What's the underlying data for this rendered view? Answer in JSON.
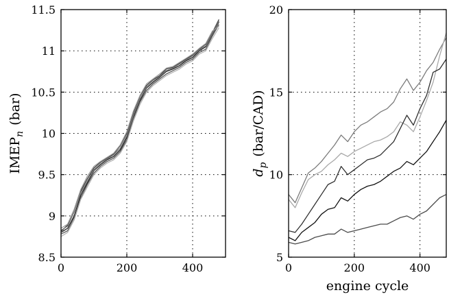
{
  "chart_data": [
    {
      "type": "line",
      "title": "",
      "xlabel": "",
      "ylabel": "IMEP",
      "ylabel_subscript": "n",
      "ylabel_unit": "(bar)",
      "xlim": [
        0,
        500
      ],
      "ylim": [
        8.5,
        11.5
      ],
      "xticks": [
        "0",
        "200",
        "400"
      ],
      "yticks": [
        "8.5",
        "9",
        "9.5",
        "10",
        "10.5",
        "11",
        "11.5"
      ],
      "grid": true,
      "x": [
        0,
        20,
        40,
        60,
        80,
        100,
        120,
        140,
        160,
        180,
        200,
        220,
        240,
        260,
        280,
        300,
        320,
        340,
        360,
        380,
        400,
        420,
        440,
        460,
        480
      ],
      "series": [
        {
          "color": "#1e1e1e",
          "values": [
            8.8,
            8.85,
            9.0,
            9.25,
            9.4,
            9.55,
            9.62,
            9.68,
            9.72,
            9.8,
            9.95,
            10.2,
            10.4,
            10.55,
            10.62,
            10.68,
            10.75,
            10.78,
            10.82,
            10.88,
            10.92,
            11.0,
            11.05,
            11.2,
            11.35
          ]
        },
        {
          "color": "#3c3c3c",
          "values": [
            8.82,
            8.88,
            9.05,
            9.3,
            9.45,
            9.58,
            9.65,
            9.7,
            9.75,
            9.85,
            10.0,
            10.25,
            10.45,
            10.58,
            10.65,
            10.7,
            10.78,
            10.8,
            10.85,
            10.9,
            10.95,
            11.02,
            11.08,
            11.22,
            11.38
          ]
        },
        {
          "color": "#5a5a5a",
          "values": [
            8.78,
            8.82,
            8.98,
            9.22,
            9.38,
            9.52,
            9.6,
            9.66,
            9.7,
            9.78,
            9.92,
            10.18,
            10.38,
            10.52,
            10.6,
            10.66,
            10.72,
            10.76,
            10.8,
            10.86,
            10.9,
            10.98,
            11.02,
            11.18,
            11.32
          ]
        },
        {
          "color": "#787878",
          "values": [
            8.8,
            8.9,
            9.05,
            9.28,
            9.42,
            9.56,
            9.63,
            9.69,
            9.74,
            9.82,
            9.97,
            10.22,
            10.42,
            10.56,
            10.63,
            10.69,
            10.76,
            10.79,
            10.84,
            10.89,
            10.94,
            11.01,
            11.06,
            11.21,
            11.36
          ]
        },
        {
          "color": "#9a9a9a",
          "values": [
            8.85,
            8.9,
            9.08,
            9.32,
            9.48,
            9.6,
            9.66,
            9.71,
            9.76,
            9.86,
            10.02,
            10.27,
            10.46,
            10.6,
            10.66,
            10.72,
            10.79,
            10.81,
            10.86,
            10.91,
            10.96,
            11.03,
            11.09,
            11.24,
            11.3
          ]
        },
        {
          "color": "#b4b4b4",
          "values": [
            8.75,
            8.8,
            8.95,
            9.2,
            9.35,
            9.5,
            9.58,
            9.64,
            9.68,
            9.76,
            9.9,
            10.15,
            10.35,
            10.5,
            10.58,
            10.64,
            10.7,
            10.74,
            10.78,
            10.84,
            10.88,
            10.96,
            11.0,
            11.15,
            11.28
          ]
        }
      ]
    },
    {
      "type": "line",
      "title": "",
      "xlabel": "engine cycle",
      "ylabel": "d",
      "ylabel_subscript": "p",
      "ylabel_unit": "(bar/CAD)",
      "xlim": [
        0,
        480
      ],
      "ylim": [
        5,
        20
      ],
      "xticks": [
        "0",
        "200",
        "400"
      ],
      "yticks": [
        "5",
        "10",
        "15",
        "20"
      ],
      "grid": true,
      "x": [
        0,
        20,
        40,
        60,
        80,
        100,
        120,
        140,
        160,
        180,
        200,
        220,
        240,
        260,
        280,
        300,
        320,
        340,
        360,
        380,
        400,
        420,
        440,
        460,
        480
      ],
      "series": [
        {
          "color": "#7a7a7a",
          "values": [
            8.8,
            8.3,
            9.2,
            10.1,
            10.4,
            10.8,
            11.3,
            11.8,
            12.4,
            12.0,
            12.6,
            13.0,
            13.2,
            13.5,
            13.8,
            14.0,
            14.4,
            15.2,
            15.8,
            15.1,
            15.6,
            16.3,
            16.8,
            17.6,
            18.3
          ]
        },
        {
          "color": "#a8a8a8",
          "values": [
            8.5,
            8.0,
            8.9,
            9.7,
            10.0,
            10.2,
            10.6,
            10.9,
            11.3,
            11.1,
            11.4,
            11.6,
            11.8,
            12.0,
            12.1,
            12.3,
            12.6,
            13.2,
            13.0,
            12.6,
            13.5,
            14.5,
            15.6,
            17.2,
            18.6
          ]
        },
        {
          "color": "#2e2e2e",
          "values": [
            6.6,
            6.5,
            7.0,
            7.6,
            8.2,
            8.8,
            9.4,
            9.6,
            10.5,
            10.0,
            10.3,
            10.6,
            10.9,
            11.0,
            11.2,
            11.6,
            12.0,
            12.8,
            13.6,
            13.0,
            14.0,
            14.8,
            16.2,
            16.4,
            17.0
          ]
        },
        {
          "color": "#111111",
          "values": [
            6.2,
            6.0,
            6.5,
            6.8,
            7.1,
            7.6,
            7.9,
            8.0,
            8.6,
            8.4,
            8.8,
            9.1,
            9.3,
            9.4,
            9.6,
            9.9,
            10.2,
            10.4,
            10.8,
            10.6,
            11.0,
            11.4,
            12.0,
            12.6,
            13.3
          ]
        },
        {
          "color": "#4a4a4a",
          "values": [
            5.9,
            5.8,
            5.9,
            6.0,
            6.2,
            6.3,
            6.4,
            6.4,
            6.7,
            6.5,
            6.6,
            6.7,
            6.8,
            6.9,
            7.0,
            7.0,
            7.2,
            7.4,
            7.5,
            7.3,
            7.6,
            7.8,
            8.2,
            8.6,
            8.8
          ]
        }
      ]
    }
  ]
}
